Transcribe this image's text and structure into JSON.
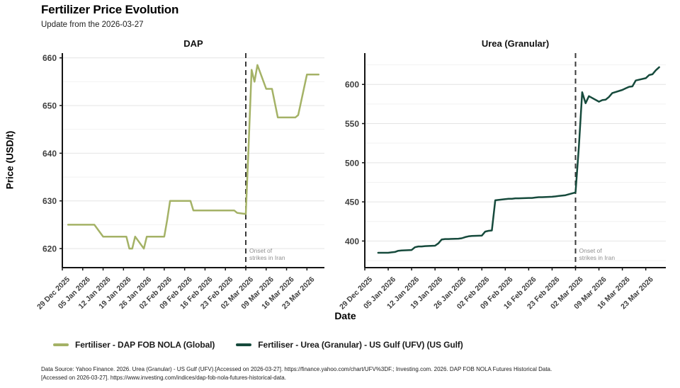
{
  "header": {
    "title": "Fertilizer Price Evolution",
    "subtitle": "Update from the 2026-03-27"
  },
  "axis": {
    "y_label": "Price (USD/t)",
    "x_label": "Date"
  },
  "colors": {
    "dap_line": "#a4b266",
    "urea_line": "#164a3c",
    "event_line": "#3a3a3a",
    "grid_major": "#e4e4e4",
    "grid_minor": "#f2f2f2",
    "axis_line": "#141414",
    "tick_label": "#3f3f3f",
    "annotation_text": "#8f8f8f"
  },
  "chart_data": [
    {
      "type": "line",
      "title": "DAP",
      "series_name": "Fertiliser - DAP FOB NOLA (Global)",
      "color": "#a4b266",
      "ylim": [
        616,
        661
      ],
      "yticks": [
        620,
        630,
        640,
        650,
        660
      ],
      "yticks_minor": [
        625,
        635,
        645,
        655
      ],
      "x_domain": [
        "2025-12-29",
        "2026-03-29"
      ],
      "xticks": [
        "2025-12-29",
        "2026-01-05",
        "2026-01-12",
        "2026-01-19",
        "2026-01-26",
        "2026-02-02",
        "2026-02-09",
        "2026-02-16",
        "2026-02-23",
        "2026-03-02",
        "2026-03-09",
        "2026-03-16",
        "2026-03-23"
      ],
      "xtick_labels": [
        "29 Dec 2025",
        "05 Jan 2026",
        "12 Jan 2026",
        "19 Jan 2026",
        "26 Jan 2026",
        "02 Feb 2026",
        "09 Feb 2026",
        "16 Feb 2026",
        "23 Feb 2026",
        "02 Mar 2026",
        "09 Mar 2026",
        "16 Mar 2026",
        "23 Mar 2026"
      ],
      "annotation": {
        "date": "2026-03-02",
        "line1": "Onset of",
        "line2": "strikes in Iran"
      },
      "dates": [
        "2025-12-31",
        "2026-01-01",
        "2026-01-02",
        "2026-01-05",
        "2026-01-06",
        "2026-01-07",
        "2026-01-08",
        "2026-01-09",
        "2026-01-12",
        "2026-01-13",
        "2026-01-14",
        "2026-01-15",
        "2026-01-16",
        "2026-01-19",
        "2026-01-20",
        "2026-01-21",
        "2026-01-22",
        "2026-01-23",
        "2026-01-26",
        "2026-01-27",
        "2026-01-28",
        "2026-01-29",
        "2026-01-30",
        "2026-02-02",
        "2026-02-03",
        "2026-02-04",
        "2026-02-05",
        "2026-02-06",
        "2026-02-09",
        "2026-02-10",
        "2026-02-11",
        "2026-02-12",
        "2026-02-13",
        "2026-02-16",
        "2026-02-17",
        "2026-02-18",
        "2026-02-19",
        "2026-02-20",
        "2026-02-23",
        "2026-02-24",
        "2026-02-25",
        "2026-02-26",
        "2026-02-27",
        "2026-03-02",
        "2026-03-03",
        "2026-03-04",
        "2026-03-05",
        "2026-03-06",
        "2026-03-09",
        "2026-03-10",
        "2026-03-11",
        "2026-03-12",
        "2026-03-13",
        "2026-03-16",
        "2026-03-17",
        "2026-03-18",
        "2026-03-19",
        "2026-03-20",
        "2026-03-23",
        "2026-03-24",
        "2026-03-25",
        "2026-03-26",
        "2026-03-27"
      ],
      "values": [
        625,
        625,
        625,
        625,
        625,
        625,
        625,
        625,
        622.5,
        622.5,
        622.5,
        622.5,
        622.5,
        622.5,
        622.5,
        620,
        620,
        622.5,
        620,
        622.5,
        622.5,
        622.5,
        622.5,
        622.5,
        626,
        630,
        630,
        630,
        630,
        630,
        630,
        628,
        628,
        628,
        628,
        628,
        628,
        628,
        628,
        628,
        628,
        628,
        627.5,
        627.25,
        642,
        657.5,
        655,
        658.5,
        653.5,
        653.5,
        653.5,
        650.5,
        647.5,
        647.5,
        647.5,
        647.5,
        647.5,
        648,
        656.5,
        656.5,
        656.5,
        656.5,
        656.5
      ]
    },
    {
      "type": "line",
      "title": "Urea (Granular)",
      "series_name": "Fertiliser - Urea (Granular) - US Gulf (UFV) (US Gulf)",
      "color": "#164a3c",
      "ylim": [
        366,
        640
      ],
      "yticks": [
        400,
        450,
        500,
        550,
        600
      ],
      "yticks_minor": [
        375,
        425,
        475,
        525,
        575,
        625
      ],
      "x_domain": [
        "2025-12-29",
        "2026-03-29"
      ],
      "xticks": [
        "2025-12-29",
        "2026-01-05",
        "2026-01-12",
        "2026-01-19",
        "2026-01-26",
        "2026-02-02",
        "2026-02-09",
        "2026-02-16",
        "2026-02-23",
        "2026-03-02",
        "2026-03-09",
        "2026-03-16",
        "2026-03-23"
      ],
      "xtick_labels": [
        "29 Dec 2025",
        "05 Jan 2026",
        "12 Jan 2026",
        "19 Jan 2026",
        "26 Jan 2026",
        "02 Feb 2026",
        "09 Feb 2026",
        "16 Feb 2026",
        "23 Feb 2026",
        "02 Mar 2026",
        "09 Mar 2026",
        "16 Mar 2026",
        "23 Mar 2026"
      ],
      "annotation": {
        "date": "2026-03-02",
        "line1": "Onset of",
        "line2": "strikes in Iran"
      },
      "dates": [
        "2026-01-02",
        "2026-01-05",
        "2026-01-06",
        "2026-01-07",
        "2026-01-08",
        "2026-01-09",
        "2026-01-12",
        "2026-01-13",
        "2026-01-14",
        "2026-01-15",
        "2026-01-16",
        "2026-01-19",
        "2026-01-20",
        "2026-01-21",
        "2026-01-22",
        "2026-01-23",
        "2026-01-26",
        "2026-01-27",
        "2026-01-28",
        "2026-01-29",
        "2026-01-30",
        "2026-02-02",
        "2026-02-03",
        "2026-02-04",
        "2026-02-05",
        "2026-02-06",
        "2026-02-09",
        "2026-02-10",
        "2026-02-11",
        "2026-02-12",
        "2026-02-13",
        "2026-02-16",
        "2026-02-17",
        "2026-02-18",
        "2026-02-19",
        "2026-02-20",
        "2026-02-23",
        "2026-02-24",
        "2026-02-25",
        "2026-02-26",
        "2026-02-27",
        "2026-03-02",
        "2026-03-03",
        "2026-03-04",
        "2026-03-05",
        "2026-03-06",
        "2026-03-09",
        "2026-03-10",
        "2026-03-11",
        "2026-03-12",
        "2026-03-13",
        "2026-03-16",
        "2026-03-17",
        "2026-03-18",
        "2026-03-19",
        "2026-03-20",
        "2026-03-23",
        "2026-03-24",
        "2026-03-25",
        "2026-03-26",
        "2026-03-27"
      ],
      "values": [
        385,
        385,
        385.5,
        386,
        387.5,
        388,
        388.5,
        392,
        393,
        393,
        393.5,
        394,
        397,
        402,
        402.5,
        402.5,
        403,
        403.5,
        405,
        406,
        406.5,
        407,
        412,
        413,
        413.5,
        452,
        453.5,
        454,
        454,
        454.5,
        454.5,
        455,
        455,
        455.5,
        456,
        456,
        456.5,
        457,
        457.5,
        458,
        458.5,
        462,
        520,
        590,
        576,
        585,
        578,
        580,
        580.5,
        584,
        589,
        593,
        595,
        597,
        597.5,
        605,
        608,
        612,
        613,
        618,
        622
      ]
    }
  ],
  "legend": [
    {
      "label": "Fertiliser - DAP FOB NOLA (Global)",
      "color": "#a4b266"
    },
    {
      "label": "Fertiliser - Urea (Granular) - US Gulf (UFV) (US Gulf)",
      "color": "#164a3c"
    }
  ],
  "footer": {
    "line1": "Data Source: Yahoo Finance. 2026. Urea (Granular) - US Gulf (UFV).[Accessed on 2026-03-27]. https://finance.yahoo.com/chart/UFV%3DF.; Investing.com. 2026. DAP FOB NOLA Futures Historical Data.",
    "line2": "[Accessed on 2026-03-27]. https://www.investing.com/indices/dap-fob-nola-futures-historical-data."
  }
}
